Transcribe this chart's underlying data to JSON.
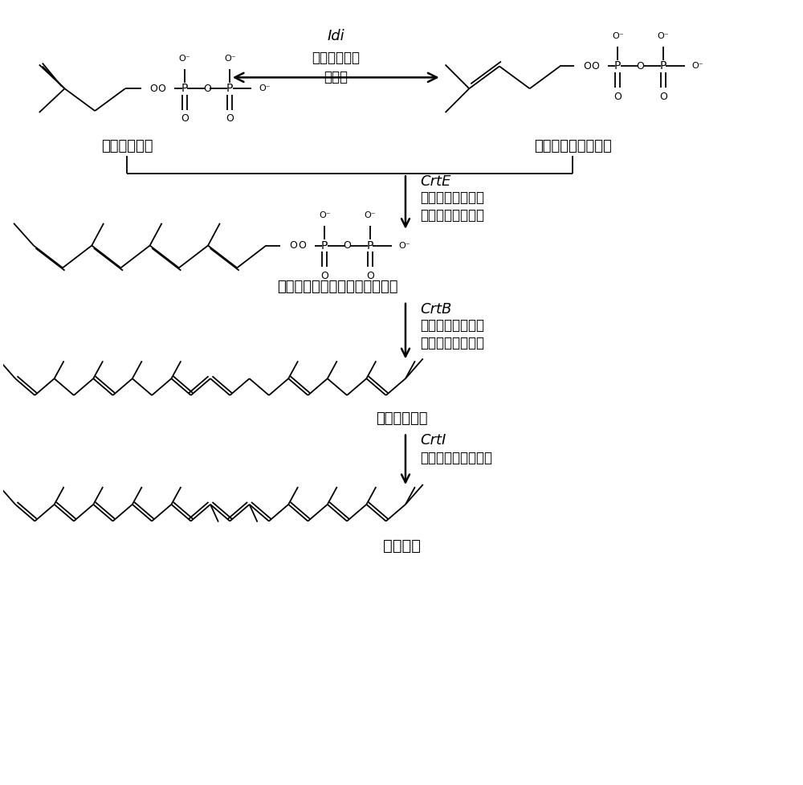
{
  "background_color": "#ffffff",
  "line_color": "#000000",
  "text_color": "#000000",
  "fig_width": 10.0,
  "fig_height": 9.77,
  "labels": {
    "ipp": "异戊烯焦磷酸",
    "dmapp": "二甲基烯丙基焦磷酸",
    "ggpp": "牻牛儿基牻牛儿基焦磷酸焦磷酸",
    "phytoene": "八氢番茄红素",
    "lycopene": "番茄红素"
  },
  "enzyme_idi_1": "Idi",
  "enzyme_idi_2": "异戊烯焦磷酸",
  "enzyme_idi_3": "异构酶",
  "enzyme_crte_1": "CrtE",
  "enzyme_crte_2": "牻牛儿基牻牛儿基",
  "enzyme_crte_3": "焦磷酸焦磷酸合酶",
  "enzyme_crtb_1": "CrtB",
  "enzyme_crtb_2": "牻牛儿基牻牛儿基",
  "enzyme_crtb_3": "焦磷酸焦磷酸合酶",
  "enzyme_crti_1": "CrtI",
  "enzyme_crti_2": "八氢番茄红素脱氢酶"
}
